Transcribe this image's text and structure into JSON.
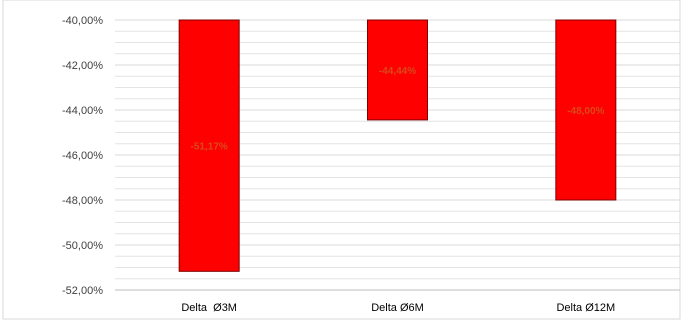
{
  "chart_data": {
    "type": "bar",
    "title": "",
    "xlabel": "",
    "ylabel": "",
    "categories": [
      "Delta  Ø3M",
      "Delta Ø6M",
      "Delta Ø12M"
    ],
    "values": [
      -51.17,
      -44.44,
      -48.0
    ],
    "data_labels": [
      "-51,17%",
      "-44,44%",
      "-48,00%"
    ],
    "ylim": [
      -52,
      -40
    ],
    "y_ticks": [
      -40,
      -42,
      -44,
      -46,
      -48,
      -50,
      -52
    ],
    "y_tick_labels": [
      "-40,00%",
      "-42,00%",
      "-44,00%",
      "-46,00%",
      "-48,00%",
      "-50,00%",
      "-52,00%"
    ],
    "minor_step": 0.5,
    "grid": true,
    "legend": "none",
    "bar_color": "#ff0000",
    "bar_edge_color": "#7f0000",
    "label_color": "#d84a1b",
    "grid_color": "#d9d9d9"
  }
}
